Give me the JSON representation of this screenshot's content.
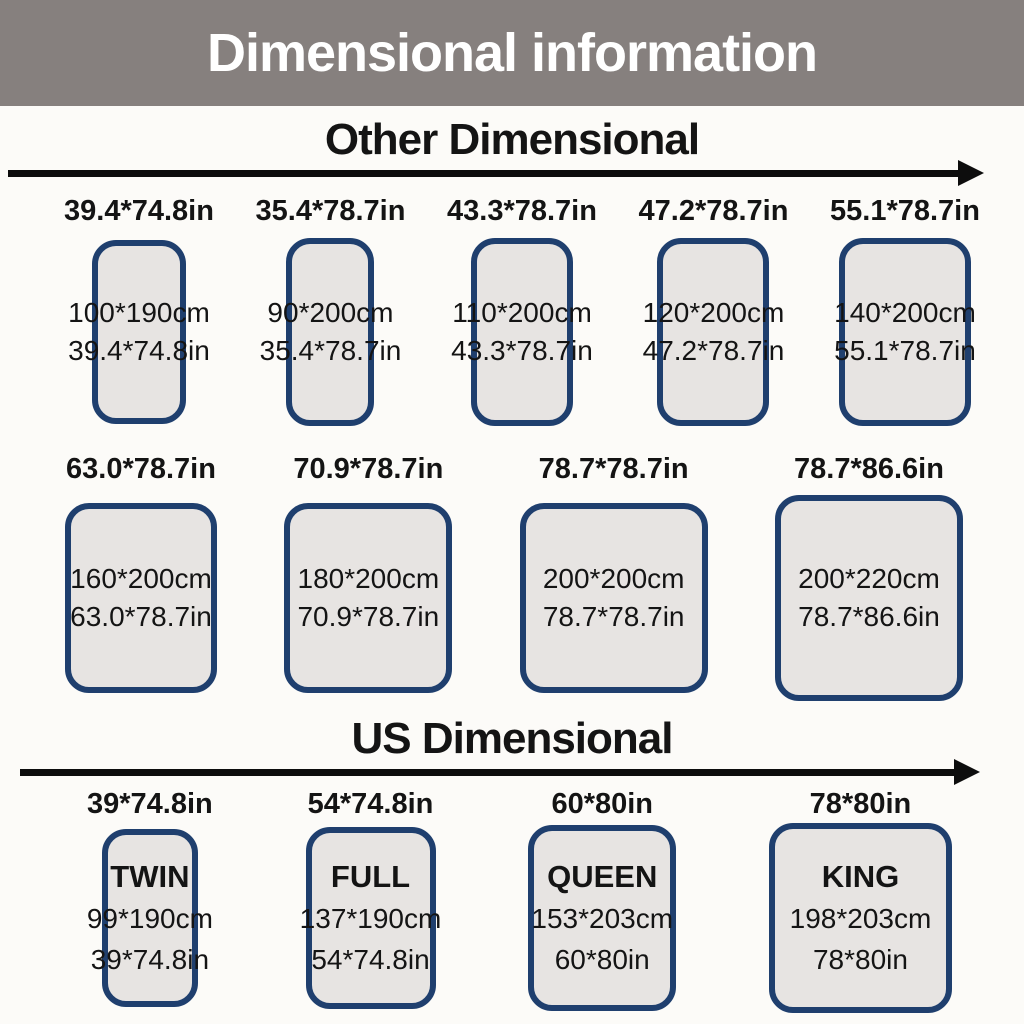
{
  "title": "Dimensional information",
  "colors": {
    "header_bar": "#86807e",
    "rect_border": "#1f3f6e",
    "rect_fill": "#e7e4e2",
    "arrow": "#0d0d0d"
  },
  "sections": {
    "other": {
      "heading": "Other Dimensional",
      "row1": [
        {
          "header": "39.4*74.8in",
          "cm": "100*190cm",
          "inch": "39.4*74.8in"
        },
        {
          "header": "35.4*78.7in",
          "cm": "90*200cm",
          "inch": "35.4*78.7in"
        },
        {
          "header": "43.3*78.7in",
          "cm": "110*200cm",
          "inch": "43.3*78.7in"
        },
        {
          "header": "47.2*78.7in",
          "cm": "120*200cm",
          "inch": "47.2*78.7in"
        },
        {
          "header": "55.1*78.7in",
          "cm": "140*200cm",
          "inch": "55.1*78.7in"
        }
      ],
      "row2": [
        {
          "header": "63.0*78.7in",
          "cm": "160*200cm",
          "inch": "63.0*78.7in"
        },
        {
          "header": "70.9*78.7in",
          "cm": "180*200cm",
          "inch": "70.9*78.7in"
        },
        {
          "header": "78.7*78.7in",
          "cm": "200*200cm",
          "inch": "78.7*78.7in"
        },
        {
          "header": "78.7*86.6in",
          "cm": "200*220cm",
          "inch": "78.7*86.6in"
        }
      ]
    },
    "us": {
      "heading": "US Dimensional",
      "row1": [
        {
          "header": "39*74.8in",
          "name": "TWIN",
          "cm": "99*190cm",
          "inch": "39*74.8in"
        },
        {
          "header": "54*74.8in",
          "name": "FULL",
          "cm": "137*190cm",
          "inch": "54*74.8in"
        },
        {
          "header": "60*80in",
          "name": "QUEEN",
          "cm": "153*203cm",
          "inch": "60*80in"
        },
        {
          "header": "78*80in",
          "name": "KING",
          "cm": "198*203cm",
          "inch": "78*80in"
        }
      ]
    }
  }
}
